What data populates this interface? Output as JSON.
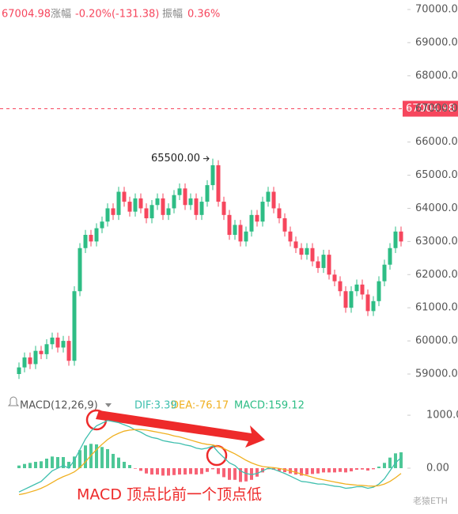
{
  "header": {
    "price_label": "涨幅",
    "change": "-0.20%(-131.38)",
    "amp_label": "振幅",
    "amp": "0.36%"
  },
  "annotation": "MACD 顶点比前一个顶点低",
  "watermark": "老猿ETH",
  "chart_data": [
    {
      "type": "candlestick",
      "up_color": "#2ebd85",
      "down_color": "#f6465d",
      "ylim": [
        58356,
        70286
      ],
      "yticks": [
        {
          "value": 59000,
          "label": "59000.00"
        },
        {
          "value": 60000,
          "label": "60000.00"
        },
        {
          "value": 61000,
          "label": "61000.00"
        },
        {
          "value": 62000,
          "label": "62000.00"
        },
        {
          "value": 63000,
          "label": "63000.00"
        },
        {
          "value": 64000,
          "label": "64000.00"
        },
        {
          "value": 65000,
          "label": "65000.00"
        },
        {
          "value": 66000,
          "label": "66000.00"
        },
        {
          "value": 67000,
          "label": "67000.00"
        },
        {
          "value": 68000,
          "label": "68000.00"
        },
        {
          "value": 69000,
          "label": "69000.00"
        },
        {
          "value": 70000,
          "label": "70000.00"
        }
      ],
      "current_price": 67004.98,
      "peak": {
        "value": 65500,
        "label": "65500.00",
        "index": 35
      },
      "candles": [
        [
          59000,
          59350,
          58850,
          59200
        ],
        [
          59200,
          59650,
          59050,
          59500
        ],
        [
          59500,
          59650,
          59150,
          59300
        ],
        [
          59300,
          59850,
          59150,
          59700
        ],
        [
          59700,
          59850,
          59450,
          59600
        ],
        [
          59600,
          60050,
          59450,
          59900
        ],
        [
          59900,
          60250,
          59750,
          60100
        ],
        [
          60100,
          60250,
          59650,
          59800
        ],
        [
          59800,
          60150,
          59650,
          60000
        ],
        [
          60000,
          60150,
          59250,
          59400
        ],
        [
          59400,
          61650,
          59250,
          61500
        ],
        [
          61500,
          62950,
          61350,
          62800
        ],
        [
          62800,
          63350,
          62650,
          63200
        ],
        [
          63200,
          63350,
          62850,
          63000
        ],
        [
          63000,
          63550,
          62850,
          63400
        ],
        [
          63400,
          63750,
          63250,
          63600
        ],
        [
          63600,
          64150,
          63450,
          64000
        ],
        [
          64000,
          64150,
          63650,
          63800
        ],
        [
          63800,
          64650,
          63650,
          64500
        ],
        [
          64500,
          64650,
          64050,
          64200
        ],
        [
          64200,
          64350,
          63750,
          63900
        ],
        [
          63900,
          64450,
          63750,
          64300
        ],
        [
          64300,
          64450,
          63850,
          64000
        ],
        [
          64000,
          64150,
          63550,
          63700
        ],
        [
          63700,
          64250,
          63550,
          64100
        ],
        [
          64100,
          64450,
          63950,
          64300
        ],
        [
          64300,
          64450,
          63650,
          63800
        ],
        [
          63800,
          64150,
          63650,
          64000
        ],
        [
          64000,
          64550,
          63850,
          64400
        ],
        [
          64400,
          64750,
          64250,
          64600
        ],
        [
          64600,
          64750,
          63950,
          64100
        ],
        [
          64100,
          64450,
          63950,
          64300
        ],
        [
          64300,
          64450,
          63650,
          63800
        ],
        [
          63800,
          64350,
          63650,
          64200
        ],
        [
          64200,
          64850,
          64050,
          64700
        ],
        [
          64700,
          65500,
          64550,
          65300
        ],
        [
          65300,
          65450,
          64050,
          64200
        ],
        [
          64200,
          64350,
          63650,
          63800
        ],
        [
          63800,
          63950,
          63050,
          63200
        ],
        [
          63200,
          63650,
          63050,
          63500
        ],
        [
          63500,
          63650,
          62850,
          63000
        ],
        [
          63000,
          63450,
          62850,
          63300
        ],
        [
          63300,
          63950,
          63150,
          63800
        ],
        [
          63800,
          63950,
          63450,
          63600
        ],
        [
          63600,
          64350,
          63450,
          64200
        ],
        [
          64200,
          64650,
          64050,
          64500
        ],
        [
          64500,
          64650,
          63850,
          64000
        ],
        [
          64000,
          64150,
          63550,
          63700
        ],
        [
          63700,
          63850,
          63150,
          63300
        ],
        [
          63300,
          63450,
          62850,
          63000
        ],
        [
          63000,
          63150,
          62650,
          62800
        ],
        [
          62800,
          62950,
          62450,
          62600
        ],
        [
          62600,
          62950,
          62450,
          62800
        ],
        [
          62800,
          62950,
          62250,
          62400
        ],
        [
          62400,
          62550,
          62050,
          62200
        ],
        [
          62200,
          62750,
          62050,
          62600
        ],
        [
          62600,
          62750,
          61850,
          62000
        ],
        [
          62000,
          62150,
          61650,
          61800
        ],
        [
          61800,
          61950,
          61350,
          61500
        ],
        [
          61500,
          61650,
          60850,
          61000
        ],
        [
          61000,
          61650,
          60850,
          61500
        ],
        [
          61500,
          61850,
          61350,
          61700
        ],
        [
          61700,
          61850,
          61250,
          61400
        ],
        [
          61400,
          61550,
          60750,
          60900
        ],
        [
          60900,
          61350,
          60750,
          61200
        ],
        [
          61200,
          61950,
          61050,
          61800
        ],
        [
          61800,
          62450,
          61650,
          62300
        ],
        [
          62300,
          62950,
          62150,
          62800
        ],
        [
          62800,
          63450,
          62650,
          63300
        ],
        [
          63300,
          63450,
          62850,
          63000
        ]
      ]
    },
    {
      "type": "macd",
      "indicator": "MACD(12,26,9)",
      "ylim": [
        -716,
        1300
      ],
      "yticks": [
        {
          "value": 0,
          "label": "0.00"
        },
        {
          "value": 1000,
          "label": "1000.00"
        }
      ],
      "series": [
        {
          "name": "DIF:3.39",
          "color": "#3fbfae",
          "kind": "line",
          "values": [
            -450,
            -400,
            -350,
            -300,
            -250,
            -150,
            -50,
            0,
            50,
            0,
            150,
            350,
            550,
            700,
            800,
            850,
            900,
            880,
            860,
            820,
            780,
            720,
            680,
            620,
            580,
            560,
            520,
            500,
            480,
            470,
            440,
            420,
            380,
            360,
            380,
            420,
            300,
            200,
            100,
            50,
            -50,
            -100,
            -120,
            -100,
            -50,
            0,
            -20,
            -60,
            -100,
            -150,
            -200,
            -250,
            -260,
            -280,
            -300,
            -300,
            -320,
            -340,
            -350,
            -380,
            -370,
            -350,
            -350,
            -380,
            -360,
            -300,
            -200,
            -50,
            100,
            200
          ]
        },
        {
          "name": "DEA:-76.17",
          "color": "#f0b020",
          "kind": "line",
          "values": [
            -500,
            -480,
            -450,
            -420,
            -380,
            -330,
            -270,
            -210,
            -160,
            -120,
            -70,
            10,
            120,
            240,
            350,
            450,
            540,
            610,
            660,
            700,
            720,
            730,
            730,
            720,
            700,
            680,
            660,
            640,
            610,
            590,
            560,
            530,
            500,
            470,
            450,
            440,
            410,
            370,
            320,
            270,
            210,
            150,
            100,
            60,
            30,
            20,
            10,
            -5,
            -25,
            -50,
            -80,
            -110,
            -140,
            -170,
            -200,
            -220,
            -240,
            -260,
            -280,
            -300,
            -310,
            -320,
            -325,
            -335,
            -340,
            -330,
            -300,
            -250,
            -180,
            -100
          ]
        },
        {
          "name": "MACD:159.12",
          "color": "#2ebd85",
          "neg_color": "#f6465d",
          "kind": "bar",
          "values": [
            50,
            80,
            100,
            120,
            130,
            180,
            220,
            210,
            210,
            120,
            220,
            340,
            430,
            460,
            450,
            400,
            360,
            270,
            200,
            120,
            60,
            -10,
            -50,
            -100,
            -120,
            -120,
            -140,
            -140,
            -130,
            -120,
            -120,
            -110,
            -120,
            -110,
            -70,
            -20,
            -110,
            -170,
            -220,
            -220,
            -260,
            -250,
            -220,
            -160,
            -80,
            -20,
            -30,
            -55,
            -75,
            -100,
            -120,
            -140,
            -120,
            -110,
            -100,
            -80,
            -80,
            -80,
            -70,
            -80,
            -60,
            -30,
            -25,
            -45,
            -20,
            30,
            100,
            200,
            280,
            300
          ]
        }
      ]
    }
  ]
}
